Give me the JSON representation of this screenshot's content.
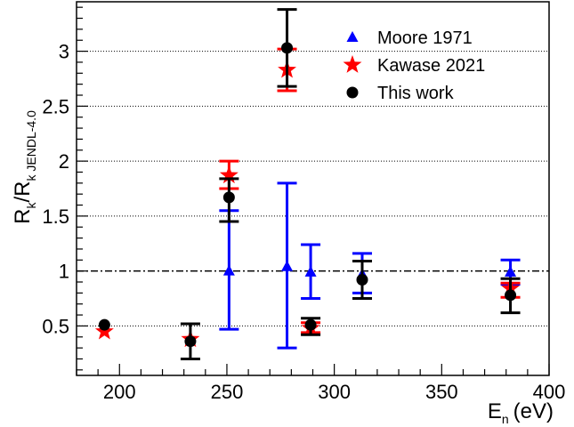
{
  "chart_data": {
    "type": "scatter",
    "xlabel": "E",
    "xlabel_sub": "n",
    "xlabel_unit": "(eV)",
    "ylabel_main": "R",
    "ylabel_sub1": "k",
    "ylabel_sep": "/R",
    "ylabel_sub2": "k JENDL-4.0",
    "xlim": [
      180,
      400
    ],
    "ylim": [
      0.05,
      3.45
    ],
    "x_ticks": [
      200,
      250,
      300,
      350,
      400
    ],
    "x_tick_labels": [
      "200",
      "250",
      "300",
      "350",
      "400"
    ],
    "y_ticks": [
      0.5,
      1,
      1.5,
      2,
      2.5,
      3
    ],
    "y_tick_labels": [
      "0.5",
      "1",
      "1.5",
      "2",
      "2.5",
      "3"
    ],
    "grid": "horizontal-dotted",
    "reference_line": 1.0,
    "legend_position": "top-right",
    "series": [
      {
        "name": "Moore 1971",
        "marker": "triangle",
        "color": "#0000ff",
        "points": [
          {
            "x": 251,
            "y": 1.0,
            "lo": 0.47,
            "hi": 1.55
          },
          {
            "x": 278,
            "y": 1.04,
            "lo": 0.3,
            "hi": 1.8
          },
          {
            "x": 289,
            "y": 0.99,
            "lo": 0.75,
            "hi": 1.24
          },
          {
            "x": 313,
            "y": 0.97,
            "lo": 0.8,
            "hi": 1.16
          },
          {
            "x": 382,
            "y": 0.99,
            "lo": 0.88,
            "hi": 1.1
          }
        ]
      },
      {
        "name": "Kawase 2021",
        "marker": "star",
        "color": "#ff0000",
        "points": [
          {
            "x": 193,
            "y": 0.45,
            "lo": 0.45,
            "hi": 0.45
          },
          {
            "x": 233,
            "y": 0.38,
            "lo": 0.38,
            "hi": 0.38
          },
          {
            "x": 251,
            "y": 1.87,
            "lo": 1.75,
            "hi": 2.0
          },
          {
            "x": 278,
            "y": 2.83,
            "lo": 2.64,
            "hi": 3.02
          },
          {
            "x": 289,
            "y": 0.48,
            "lo": 0.44,
            "hi": 0.53
          },
          {
            "x": 382,
            "y": 0.84,
            "lo": 0.76,
            "hi": 0.89
          }
        ]
      },
      {
        "name": "This work",
        "marker": "circle",
        "color": "#000000",
        "points": [
          {
            "x": 193,
            "y": 0.51,
            "lo": 0.51,
            "hi": 0.51
          },
          {
            "x": 233,
            "y": 0.36,
            "lo": 0.2,
            "hi": 0.52
          },
          {
            "x": 251,
            "y": 1.67,
            "lo": 1.45,
            "hi": 1.84
          },
          {
            "x": 278,
            "y": 3.03,
            "lo": 2.68,
            "hi": 3.38
          },
          {
            "x": 289,
            "y": 0.51,
            "lo": 0.42,
            "hi": 0.57
          },
          {
            "x": 313,
            "y": 0.92,
            "lo": 0.75,
            "hi": 1.09
          },
          {
            "x": 382,
            "y": 0.78,
            "lo": 0.62,
            "hi": 0.93
          }
        ]
      }
    ]
  }
}
